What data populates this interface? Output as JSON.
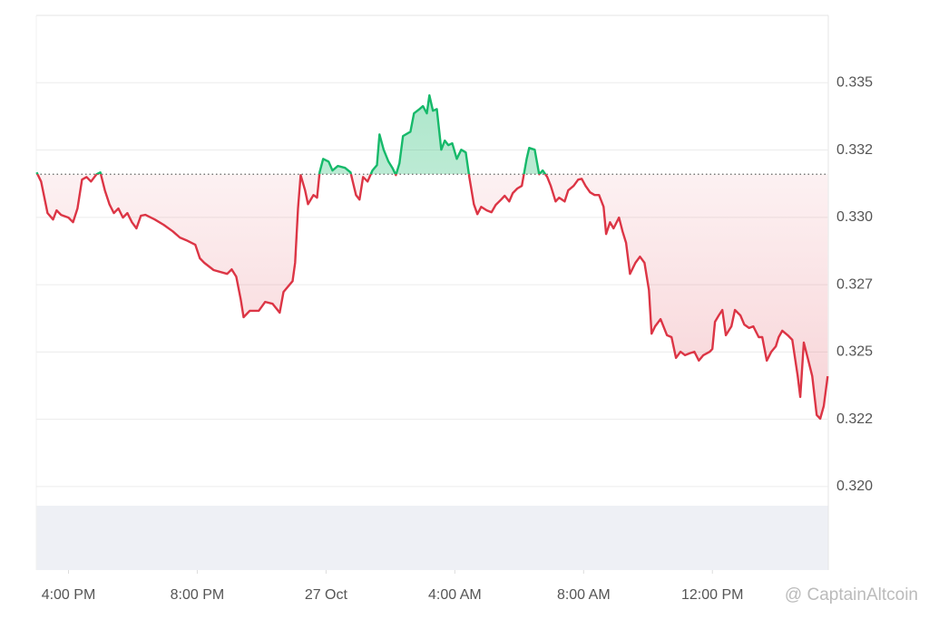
{
  "chart_data": {
    "type": "line",
    "x": [
      15.01,
      15.15,
      15.35,
      15.52,
      15.63,
      15.77,
      16.0,
      16.14,
      16.28,
      16.42,
      16.56,
      16.7,
      16.87,
      16.99,
      17.13,
      17.27,
      17.41,
      17.55,
      17.69,
      17.83,
      17.97,
      18.11,
      18.25,
      18.39,
      18.68,
      18.96,
      19.24,
      19.46,
      19.66,
      19.94,
      20.08,
      20.22,
      20.51,
      20.93,
      21.07,
      21.21,
      21.35,
      21.44,
      21.63,
      21.91,
      22.11,
      22.34,
      22.56,
      22.68,
      22.96,
      23.04,
      23.13,
      23.21,
      23.35,
      23.44,
      23.61,
      23.72,
      23.8,
      23.91,
      24.08,
      24.2,
      24.37,
      24.59,
      24.76,
      24.93,
      25.04,
      25.15,
      25.29,
      25.44,
      25.58,
      25.66,
      25.79,
      25.94,
      26.06,
      26.17,
      26.28,
      26.39,
      26.62,
      26.73,
      26.9,
      27.01,
      27.13,
      27.21,
      27.32,
      27.44,
      27.58,
      27.69,
      27.8,
      27.92,
      28.06,
      28.2,
      28.34,
      28.45,
      28.59,
      28.7,
      28.82,
      28.99,
      29.14,
      29.27,
      29.44,
      29.55,
      29.69,
      29.8,
      29.94,
      30.08,
      30.23,
      30.31,
      30.48,
      30.62,
      30.73,
      30.87,
      30.98,
      31.13,
      31.24,
      31.41,
      31.52,
      31.69,
      31.83,
      31.94,
      32.06,
      32.2,
      32.34,
      32.48,
      32.62,
      32.7,
      32.82,
      32.93,
      33.1,
      33.21,
      33.32,
      33.44,
      33.61,
      33.75,
      33.89,
      34.03,
      34.11,
      34.22,
      34.39,
      34.59,
      34.73,
      34.87,
      35.01,
      35.15,
      35.3,
      35.44,
      35.58,
      35.72,
      35.92,
      36.0,
      36.08,
      36.2,
      36.31,
      36.42,
      36.59,
      36.7,
      36.87,
      36.99,
      37.14,
      37.27,
      37.44,
      37.55,
      37.69,
      37.83,
      37.97,
      38.06,
      38.17,
      38.34,
      38.48,
      38.65,
      38.73,
      38.84,
      38.96,
      39.1,
      39.24,
      39.35,
      39.46,
      39.58
    ],
    "values": [
      0.33167,
      0.33133,
      0.33016,
      0.32992,
      0.33026,
      0.33009,
      0.32999,
      0.32982,
      0.33033,
      0.3314,
      0.3315,
      0.33133,
      0.3316,
      0.33167,
      0.331,
      0.33049,
      0.33016,
      0.33033,
      0.32999,
      0.33016,
      0.32982,
      0.32959,
      0.33006,
      0.33009,
      0.32992,
      0.32972,
      0.32948,
      0.32925,
      0.32915,
      0.32898,
      0.32848,
      0.32831,
      0.32804,
      0.3279,
      0.32807,
      0.3278,
      0.32696,
      0.32629,
      0.32653,
      0.32653,
      0.32686,
      0.32679,
      0.32646,
      0.32723,
      0.32763,
      0.32831,
      0.33033,
      0.33157,
      0.331,
      0.33049,
      0.33083,
      0.33073,
      0.33167,
      0.33217,
      0.33207,
      0.33174,
      0.33191,
      0.33184,
      0.33167,
      0.33083,
      0.33066,
      0.3315,
      0.33133,
      0.33174,
      0.33194,
      0.33308,
      0.33251,
      0.33207,
      0.33184,
      0.33157,
      0.33201,
      0.33302,
      0.33318,
      0.33386,
      0.33402,
      0.33413,
      0.33386,
      0.33453,
      0.33396,
      0.33402,
      0.33251,
      0.33285,
      0.33268,
      0.33275,
      0.33217,
      0.33251,
      0.33241,
      0.3315,
      0.33049,
      0.33012,
      0.33039,
      0.33026,
      0.33019,
      0.33046,
      0.33066,
      0.3308,
      0.33059,
      0.3309,
      0.33107,
      0.33117,
      0.33217,
      0.33258,
      0.33251,
      0.3316,
      0.33174,
      0.3315,
      0.33117,
      0.33059,
      0.33073,
      0.33059,
      0.331,
      0.33117,
      0.3314,
      0.33143,
      0.33117,
      0.33093,
      0.33083,
      0.33083,
      0.33039,
      0.32938,
      0.32982,
      0.32959,
      0.32999,
      0.32948,
      0.32905,
      0.3279,
      0.32831,
      0.32854,
      0.32831,
      0.3273,
      0.32568,
      0.32595,
      0.32622,
      0.32562,
      0.32555,
      0.32478,
      0.32501,
      0.32488,
      0.32495,
      0.32501,
      0.32468,
      0.32488,
      0.32501,
      0.32511,
      0.32612,
      0.32636,
      0.32656,
      0.32562,
      0.32595,
      0.32656,
      0.32636,
      0.32602,
      0.32589,
      0.32595,
      0.32555,
      0.32555,
      0.32468,
      0.32501,
      0.32521,
      0.32555,
      0.32579,
      0.32562,
      0.32545,
      0.3241,
      0.32333,
      0.32535,
      0.32478,
      0.3241,
      0.32266,
      0.32252,
      0.32299,
      0.3241
    ],
    "baseline": 0.3316,
    "up_color": "#16b96a",
    "down_color": "#dc3545",
    "xlim": [
      15,
      39.6
    ],
    "xticks": [
      {
        "value": 16,
        "label": "4:00 PM"
      },
      {
        "value": 20,
        "label": "8:00 PM"
      },
      {
        "value": 24,
        "label": "27 Oct"
      },
      {
        "value": 28,
        "label": "4:00 AM"
      },
      {
        "value": 32,
        "label": "8:00 AM"
      },
      {
        "value": 36,
        "label": "12:00 PM"
      }
    ],
    "ylim": [
      0.3169,
      0.3375
    ],
    "yticks": [
      {
        "value": 0.32,
        "label": "0.320"
      },
      {
        "value": 0.3225,
        "label": "0.322"
      },
      0.325,
      {
        "value": 0.3275,
        "label": "0.327"
      },
      {
        "value": 0.33,
        "label": "0.330"
      },
      {
        "value": 0.3325,
        "label": "0.332"
      },
      0.335
    ],
    "grid": true,
    "watermark": "@ CaptainAltcoin"
  }
}
